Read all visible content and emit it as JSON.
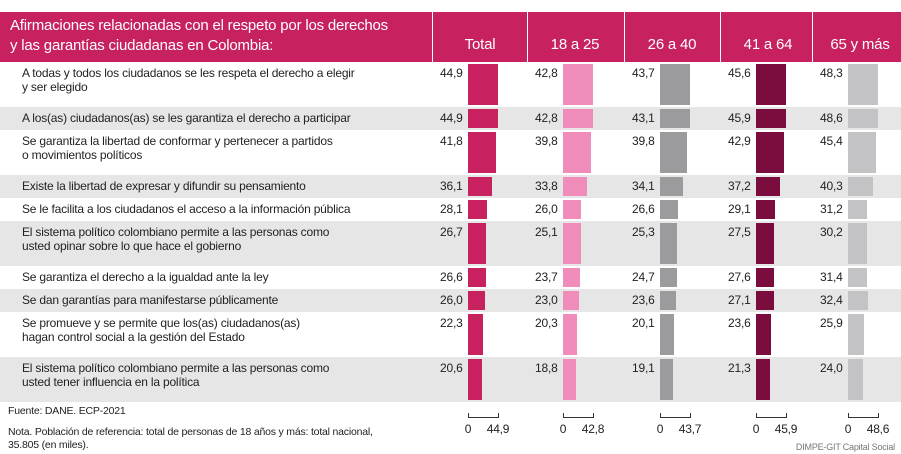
{
  "chart_data": {
    "type": "bar",
    "title": "Afirmaciones relacionadas con el respeto por los derechos\ny las garantías ciudadanas en Colombia:",
    "categories": [
      "A todas y todos los ciudadanos se les respeta el derecho a elegir\ny ser elegido",
      "A los(as) ciudadanos(as) se les garantiza el derecho a participar",
      "Se garantiza la libertad de conformar y pertenecer a partidos\no movimientos políticos",
      "Existe la libertad de expresar y difundir su pensamiento",
      "Se le facilita a los ciudadanos el acceso a la información pública",
      "El sistema político colombiano permite a las personas como\nusted opinar sobre lo que hace el gobierno",
      "Se garantiza el derecho a la igualdad ante la ley",
      "Se dan garantías para manifestarse públicamente",
      "Se promueve y se permite que los(as) ciudadanos(as)\nhagan control social a la gestión del Estado",
      "El sistema político colombiano permite a las personas como\nusted tener influencia en la política"
    ],
    "series": [
      {
        "name": "Total",
        "color": "#c8215f",
        "values": [
          44.9,
          44.9,
          41.8,
          36.1,
          28.1,
          26.7,
          26.6,
          26.0,
          22.3,
          20.6
        ],
        "value_labels": [
          "44,9",
          "44,9",
          "41,8",
          "36,1",
          "28,1",
          "26,7",
          "26,6",
          "26,0",
          "22,3",
          "20,6"
        ],
        "xlim": [
          0,
          44.9
        ],
        "xticks": [
          0,
          {
            "value": 44.9,
            "label": "44,9"
          }
        ]
      },
      {
        "name": "18 a 25",
        "color": "#f08cba",
        "values": [
          42.8,
          42.8,
          39.8,
          33.8,
          26.0,
          25.1,
          23.7,
          23.0,
          20.3,
          18.8
        ],
        "value_labels": [
          "42,8",
          "42,8",
          "39,8",
          "33,8",
          "26,0",
          "25,1",
          "23,7",
          "23,0",
          "20,3",
          "18,8"
        ],
        "xlim": [
          0,
          42.8
        ],
        "xticks": [
          0,
          {
            "value": 42.8,
            "label": "42,8"
          }
        ]
      },
      {
        "name": "26 a 40",
        "color": "#9b9b9d",
        "values": [
          43.7,
          43.1,
          39.8,
          34.1,
          26.6,
          25.3,
          24.7,
          23.6,
          20.1,
          19.1
        ],
        "value_labels": [
          "43,7",
          "43,1",
          "39,8",
          "34,1",
          "26,6",
          "25,3",
          "24,7",
          "23,6",
          "20,1",
          "19,1"
        ],
        "xlim": [
          0,
          43.7
        ],
        "xticks": [
          0,
          {
            "value": 43.7,
            "label": "43,7"
          }
        ]
      },
      {
        "name": "41 a 64",
        "color": "#7a0c3e",
        "values": [
          45.6,
          45.9,
          42.9,
          37.2,
          29.1,
          27.5,
          27.6,
          27.1,
          23.6,
          21.3
        ],
        "value_labels": [
          "45,6",
          "45,9",
          "42,9",
          "37,2",
          "29,1",
          "27,5",
          "27,6",
          "27,1",
          "23,6",
          "21,3"
        ],
        "xlim": [
          0,
          45.9
        ],
        "xticks": [
          0,
          {
            "value": 45.9,
            "label": "45,9"
          }
        ]
      },
      {
        "name": "65 y más",
        "color": "#c3c3c6",
        "values": [
          48.3,
          48.6,
          45.4,
          40.3,
          31.2,
          30.2,
          31.4,
          32.4,
          25.9,
          24.0
        ],
        "value_labels": [
          "48,3",
          "48,6",
          "45,4",
          "40,3",
          "31,2",
          "30,2",
          "31,4",
          "32,4",
          "25,9",
          "24,0"
        ],
        "xlim": [
          0,
          48.6
        ],
        "xticks": [
          0,
          {
            "value": 48.6,
            "label": "48,6"
          }
        ]
      }
    ],
    "source": "Fuente: DANE. ECP-2021",
    "note": "Nota. Población de referencia: total de personas de 18 años y más: total nacional,\n35.805 (en miles).",
    "credit": "DIMPE-GIT Capital Social"
  }
}
